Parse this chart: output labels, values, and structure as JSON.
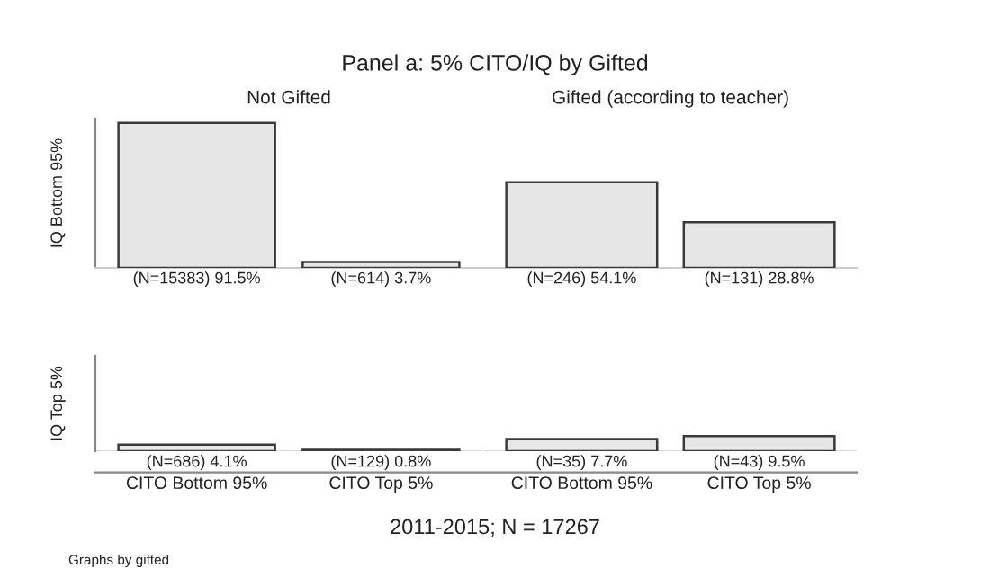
{
  "chart_data": [
    {
      "type": "bar",
      "title": "Not Gifted",
      "ylabel": "IQ Bottom 95%",
      "categories": [
        null,
        null
      ],
      "values": [
        91.5,
        3.7
      ],
      "value_labels": [
        "(N=15383) 91.5%",
        "(N=614) 3.7%"
      ],
      "color": "#e6e6e6",
      "tick_labels": false,
      "annotations": [
        "Panel a: 5% CITO/IQ by Gifted",
        "2011-2015; N = 17267",
        "Graphs by gifted"
      ]
    },
    {
      "type": "bar",
      "title": "Gifted (according to teacher)",
      "categories": [
        null,
        null
      ],
      "values": [
        54.1,
        28.8
      ],
      "value_labels": [
        "(N=246) 54.1%",
        "(N=131) 28.8%"
      ],
      "color": "#e6e6e6",
      "tick_labels": false
    },
    {
      "type": "bar",
      "ylabel": "IQ Top 5%",
      "categories": [
        "CITO Bottom 95%",
        "CITO Top 5%"
      ],
      "values": [
        4.1,
        0.8
      ],
      "value_labels": [
        "(N=686) 4.1%",
        "(N=129) 0.8%"
      ],
      "color": "#e6e6e6",
      "tick_labels": "x"
    },
    {
      "type": "bar",
      "categories": [
        "CITO Bottom 95%",
        "CITO Top 5%"
      ],
      "values": [
        7.7,
        9.5
      ],
      "value_labels": [
        "(N=35) 7.7%",
        "(N=43) 9.5%"
      ],
      "color": "#e6e6e6",
      "tick_labels": "x"
    }
  ]
}
